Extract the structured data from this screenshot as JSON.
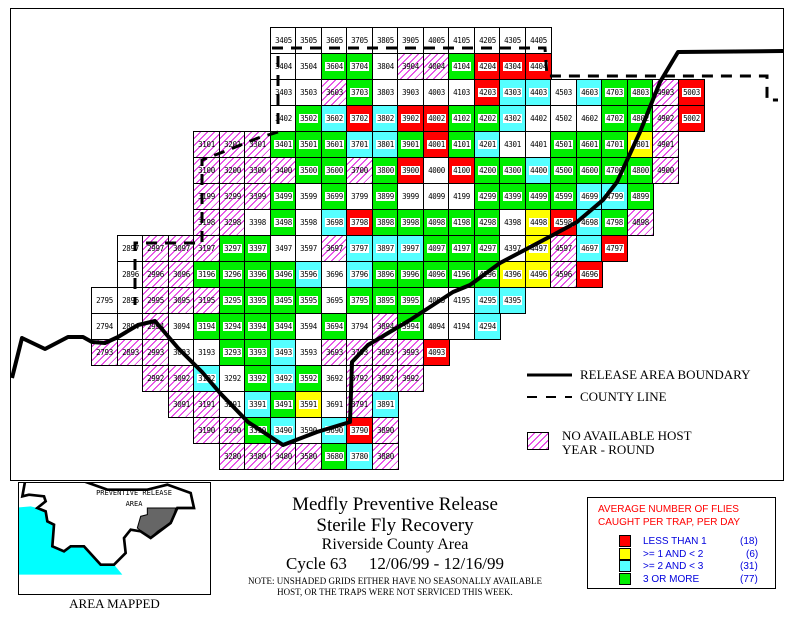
{
  "colors": {
    "R": "#ff0000",
    "Y": "#ffff00",
    "C": "#55ffff",
    "G": "#00ee00",
    "H": "hatched-magenta",
    "W": "#ffffff"
  },
  "grid_rows": [
    {
      "row": "05",
      "cells": [
        [
          "3405",
          "W"
        ],
        [
          "3505",
          "W"
        ],
        [
          "3605",
          "W"
        ],
        [
          "3705",
          "W"
        ],
        [
          "3805",
          "W"
        ],
        [
          "3905",
          "W"
        ],
        [
          "4005",
          "W"
        ],
        [
          "4105",
          "W"
        ],
        [
          "4205",
          "W"
        ],
        [
          "4305",
          "W"
        ],
        [
          "4405",
          "W"
        ]
      ]
    },
    {
      "row": "04",
      "cells": [
        [
          "3404",
          "W"
        ],
        [
          "3504",
          "W"
        ],
        [
          "3604",
          "G"
        ],
        [
          "3704",
          "G"
        ],
        [
          "3804",
          "W"
        ],
        [
          "3904",
          "H"
        ],
        [
          "4004",
          "H"
        ],
        [
          "4104",
          "G"
        ],
        [
          "4204",
          "R"
        ],
        [
          "4304",
          "R"
        ],
        [
          "4404",
          "R"
        ]
      ]
    },
    {
      "row": "03",
      "cells": [
        [
          "3403",
          "W"
        ],
        [
          "3503",
          "W"
        ],
        [
          "3603",
          "H"
        ],
        [
          "3703",
          "G"
        ],
        [
          "3803",
          "W"
        ],
        [
          "3903",
          "W"
        ],
        [
          "4003",
          "W"
        ],
        [
          "4103",
          "W"
        ],
        [
          "4203",
          "R"
        ],
        [
          "4303",
          "C"
        ],
        [
          "4403",
          "C"
        ],
        [
          "4503",
          "W"
        ],
        [
          "4603",
          "C"
        ],
        [
          "4703",
          "G"
        ],
        [
          "4803",
          "G"
        ],
        [
          "4903",
          "H"
        ],
        [
          "5003",
          "R"
        ]
      ]
    },
    {
      "row": "02",
      "cells": [
        [
          "3402",
          "W"
        ],
        [
          "3502",
          "G"
        ],
        [
          "3602",
          "C"
        ],
        [
          "3702",
          "R"
        ],
        [
          "3802",
          "C"
        ],
        [
          "3902",
          "R"
        ],
        [
          "4002",
          "R"
        ],
        [
          "4102",
          "G"
        ],
        [
          "4202",
          "G"
        ],
        [
          "4302",
          "C"
        ],
        [
          "4402",
          "W"
        ],
        [
          "4502",
          "W"
        ],
        [
          "4602",
          "W"
        ],
        [
          "4702",
          "G"
        ],
        [
          "4802",
          "G"
        ],
        [
          "4902",
          "H"
        ],
        [
          "5002",
          "R"
        ]
      ]
    },
    {
      "row": "01",
      "cells": [
        [
          "3101",
          "H"
        ],
        [
          "3201",
          "H"
        ],
        [
          "3301",
          "H"
        ],
        [
          "3401",
          "G"
        ],
        [
          "3501",
          "G"
        ],
        [
          "3601",
          "G"
        ],
        [
          "3701",
          "C"
        ],
        [
          "3801",
          "C"
        ],
        [
          "3901",
          "G"
        ],
        [
          "4001",
          "R"
        ],
        [
          "4101",
          "G"
        ],
        [
          "4201",
          "C"
        ],
        [
          "4301",
          "W"
        ],
        [
          "4401",
          "W"
        ],
        [
          "4501",
          "G"
        ],
        [
          "4601",
          "G"
        ],
        [
          "4701",
          "G"
        ],
        [
          "4801",
          "Y"
        ],
        [
          "4901",
          "H"
        ]
      ]
    },
    {
      "row": "00",
      "cells": [
        [
          "3100",
          "H"
        ],
        [
          "3200",
          "H"
        ],
        [
          "3300",
          "H"
        ],
        [
          "3400",
          "H"
        ],
        [
          "3500",
          "G"
        ],
        [
          "3600",
          "G"
        ],
        [
          "3700",
          "H"
        ],
        [
          "3800",
          "G"
        ],
        [
          "3900",
          "R"
        ],
        [
          "4000",
          "W"
        ],
        [
          "4100",
          "R"
        ],
        [
          "4200",
          "G"
        ],
        [
          "4300",
          "G"
        ],
        [
          "4400",
          "C"
        ],
        [
          "4500",
          "G"
        ],
        [
          "4600",
          "G"
        ],
        [
          "4700",
          "G"
        ],
        [
          "4800",
          "G"
        ],
        [
          "4900",
          "H"
        ]
      ]
    },
    {
      "row": "99",
      "cells": [
        [
          "3199",
          "H"
        ],
        [
          "3299",
          "H"
        ],
        [
          "3399",
          "H"
        ],
        [
          "3499",
          "G"
        ],
        [
          "3599",
          "W"
        ],
        [
          "3699",
          "G"
        ],
        [
          "3799",
          "W"
        ],
        [
          "3899",
          "G"
        ],
        [
          "3999",
          "W"
        ],
        [
          "4099",
          "W"
        ],
        [
          "4199",
          "W"
        ],
        [
          "4299",
          "G"
        ],
        [
          "4399",
          "G"
        ],
        [
          "4499",
          "G"
        ],
        [
          "4599",
          "G"
        ],
        [
          "4699",
          "C"
        ],
        [
          "4799",
          "C"
        ],
        [
          "4899",
          "G"
        ]
      ]
    },
    {
      "row": "98",
      "cells": [
        [
          "3198",
          "H"
        ],
        [
          "3298",
          "H"
        ],
        [
          "3398",
          "W"
        ],
        [
          "3498",
          "G"
        ],
        [
          "3598",
          "W"
        ],
        [
          "3698",
          "C"
        ],
        [
          "3798",
          "R"
        ],
        [
          "3898",
          "G"
        ],
        [
          "3998",
          "G"
        ],
        [
          "4098",
          "G"
        ],
        [
          "4198",
          "G"
        ],
        [
          "4298",
          "G"
        ],
        [
          "4398",
          "W"
        ],
        [
          "4498",
          "Y"
        ],
        [
          "4598",
          "R"
        ],
        [
          "4698",
          "C"
        ],
        [
          "4798",
          "G"
        ],
        [
          "4898",
          "H"
        ]
      ]
    },
    {
      "row": "97",
      "cells": [
        [
          "2897",
          "W"
        ],
        [
          "2997",
          "H"
        ],
        [
          "3097",
          "H"
        ],
        [
          "3197",
          "H"
        ],
        [
          "3297",
          "G"
        ],
        [
          "3397",
          "G"
        ],
        [
          "3497",
          "W"
        ],
        [
          "3597",
          "W"
        ],
        [
          "3697",
          "H"
        ],
        [
          "3797",
          "C"
        ],
        [
          "3897",
          "C"
        ],
        [
          "3997",
          "C"
        ],
        [
          "4097",
          "G"
        ],
        [
          "4197",
          "G"
        ],
        [
          "4297",
          "G"
        ],
        [
          "4397",
          "W"
        ],
        [
          "4497",
          "Y"
        ],
        [
          "4597",
          "H"
        ],
        [
          "4697",
          "C"
        ],
        [
          "4797",
          "R"
        ]
      ]
    },
    {
      "row": "96",
      "cells": [
        [
          "2896",
          "W"
        ],
        [
          "2996",
          "H"
        ],
        [
          "3096",
          "H"
        ],
        [
          "3196",
          "G"
        ],
        [
          "3296",
          "G"
        ],
        [
          "3396",
          "G"
        ],
        [
          "3496",
          "G"
        ],
        [
          "3596",
          "C"
        ],
        [
          "3696",
          "W"
        ],
        [
          "3796",
          "C"
        ],
        [
          "3896",
          "G"
        ],
        [
          "3996",
          "G"
        ],
        [
          "4096",
          "G"
        ],
        [
          "4196",
          "G"
        ],
        [
          "4296",
          "G"
        ],
        [
          "4396",
          "Y"
        ],
        [
          "4496",
          "Y"
        ],
        [
          "4596",
          "H"
        ],
        [
          "4696",
          "R"
        ]
      ]
    },
    {
      "row": "95",
      "cells": [
        [
          "2795",
          "W"
        ],
        [
          "2895",
          "W"
        ],
        [
          "2995",
          "H"
        ],
        [
          "3095",
          "H"
        ],
        [
          "3195",
          "H"
        ],
        [
          "3295",
          "G"
        ],
        [
          "3395",
          "G"
        ],
        [
          "3495",
          "G"
        ],
        [
          "3595",
          "G"
        ],
        [
          "3695",
          "W"
        ],
        [
          "3795",
          "G"
        ],
        [
          "3895",
          "G"
        ],
        [
          "3995",
          "G"
        ],
        [
          "4095",
          "W"
        ],
        [
          "4195",
          "W"
        ],
        [
          "4295",
          "C"
        ],
        [
          "4395",
          "C"
        ]
      ]
    },
    {
      "row": "94",
      "cells": [
        [
          "2794",
          "W"
        ],
        [
          "2894",
          "W"
        ],
        [
          "2994",
          "H"
        ],
        [
          "3094",
          "W"
        ],
        [
          "3194",
          "G"
        ],
        [
          "3294",
          "G"
        ],
        [
          "3394",
          "G"
        ],
        [
          "3494",
          "G"
        ],
        [
          "3594",
          "W"
        ],
        [
          "3694",
          "G"
        ],
        [
          "3794",
          "W"
        ],
        [
          "3894",
          "H"
        ],
        [
          "3994",
          "G"
        ],
        [
          "4094",
          "W"
        ],
        [
          "4194",
          "W"
        ],
        [
          "4294",
          "C"
        ]
      ]
    },
    {
      "row": "93",
      "cells": [
        [
          "2793",
          "H"
        ],
        [
          "2893",
          "H"
        ],
        [
          "2993",
          "H"
        ],
        [
          "3093",
          "W"
        ],
        [
          "3193",
          "W"
        ],
        [
          "3293",
          "G"
        ],
        [
          "3393",
          "G"
        ],
        [
          "3493",
          "C"
        ],
        [
          "3593",
          "W"
        ],
        [
          "3693",
          "H"
        ],
        [
          "3793",
          "H"
        ],
        [
          "3893",
          "H"
        ],
        [
          "3993",
          "H"
        ],
        [
          "4093",
          "R"
        ]
      ]
    },
    {
      "row": "92",
      "cells": [
        [
          "2992",
          "H"
        ],
        [
          "3092",
          "H"
        ],
        [
          "3192",
          "C"
        ],
        [
          "3292",
          "W"
        ],
        [
          "3392",
          "G"
        ],
        [
          "3492",
          "C"
        ],
        [
          "3592",
          "G"
        ],
        [
          "3692",
          "W"
        ],
        [
          "3792",
          "H"
        ],
        [
          "3892",
          "H"
        ],
        [
          "3992",
          "H"
        ]
      ]
    },
    {
      "row": "91",
      "cells": [
        [
          "3091",
          "H"
        ],
        [
          "3191",
          "H"
        ],
        [
          "3291",
          "W"
        ],
        [
          "3391",
          "C"
        ],
        [
          "3491",
          "G"
        ],
        [
          "3591",
          "Y"
        ],
        [
          "3691",
          "W"
        ],
        [
          "3791",
          "H"
        ],
        [
          "3891",
          "C"
        ]
      ]
    },
    {
      "row": "90",
      "cells": [
        [
          "3190",
          "H"
        ],
        [
          "3290",
          "H"
        ],
        [
          "3390",
          "G"
        ],
        [
          "3490",
          "C"
        ],
        [
          "3590",
          "W"
        ],
        [
          "3690",
          "C"
        ],
        [
          "3790",
          "R"
        ],
        [
          "3890",
          "H"
        ]
      ]
    },
    {
      "row": "80",
      "cells": [
        [
          "3280",
          "H"
        ],
        [
          "3380",
          "H"
        ],
        [
          "3480",
          "H"
        ],
        [
          "3580",
          "H"
        ],
        [
          "3680",
          "G"
        ],
        [
          "3780",
          "C"
        ],
        [
          "3880",
          "H"
        ]
      ]
    }
  ],
  "map_legend": {
    "release_boundary": "RELEASE AREA BOUNDARY",
    "county_line": "COUNTY LINE",
    "no_host_line1": "NO AVAILABLE HOST",
    "no_host_line2": "YEAR - ROUND"
  },
  "inset": {
    "label_line1": "PREVENTIVE RELEASE",
    "label_line2": "AREA",
    "caption": "AREA MAPPED"
  },
  "title": {
    "line1": "Medfly Preventive Release",
    "line2": "Sterile Fly Recovery",
    "line3": "Riverside County Area",
    "cycle": "Cycle 63",
    "dates": "12/06/99 - 12/16/99",
    "note_line1": "NOTE: UNSHADED GRIDS EITHER HAVE NO SEASONALLY AVAILABLE",
    "note_line2": "HOST, OR THE TRAPS WERE NOT SERVICED THIS WEEK."
  },
  "key": {
    "heading_line1": "AVERAGE NUMBER OF FLIES",
    "heading_line2": "CAUGHT PER TRAP, PER DAY",
    "items": [
      {
        "label": "LESS THAN 1",
        "count": "(18)",
        "color": "#ff0000"
      },
      {
        "label": ">= 1 AND < 2",
        "count": "(6)",
        "color": "#ffff00"
      },
      {
        "label": ">= 2 AND < 3",
        "count": "(31)",
        "color": "#55ffff"
      },
      {
        "label": "3 OR MORE",
        "count": "(77)",
        "color": "#00ee00"
      }
    ]
  }
}
